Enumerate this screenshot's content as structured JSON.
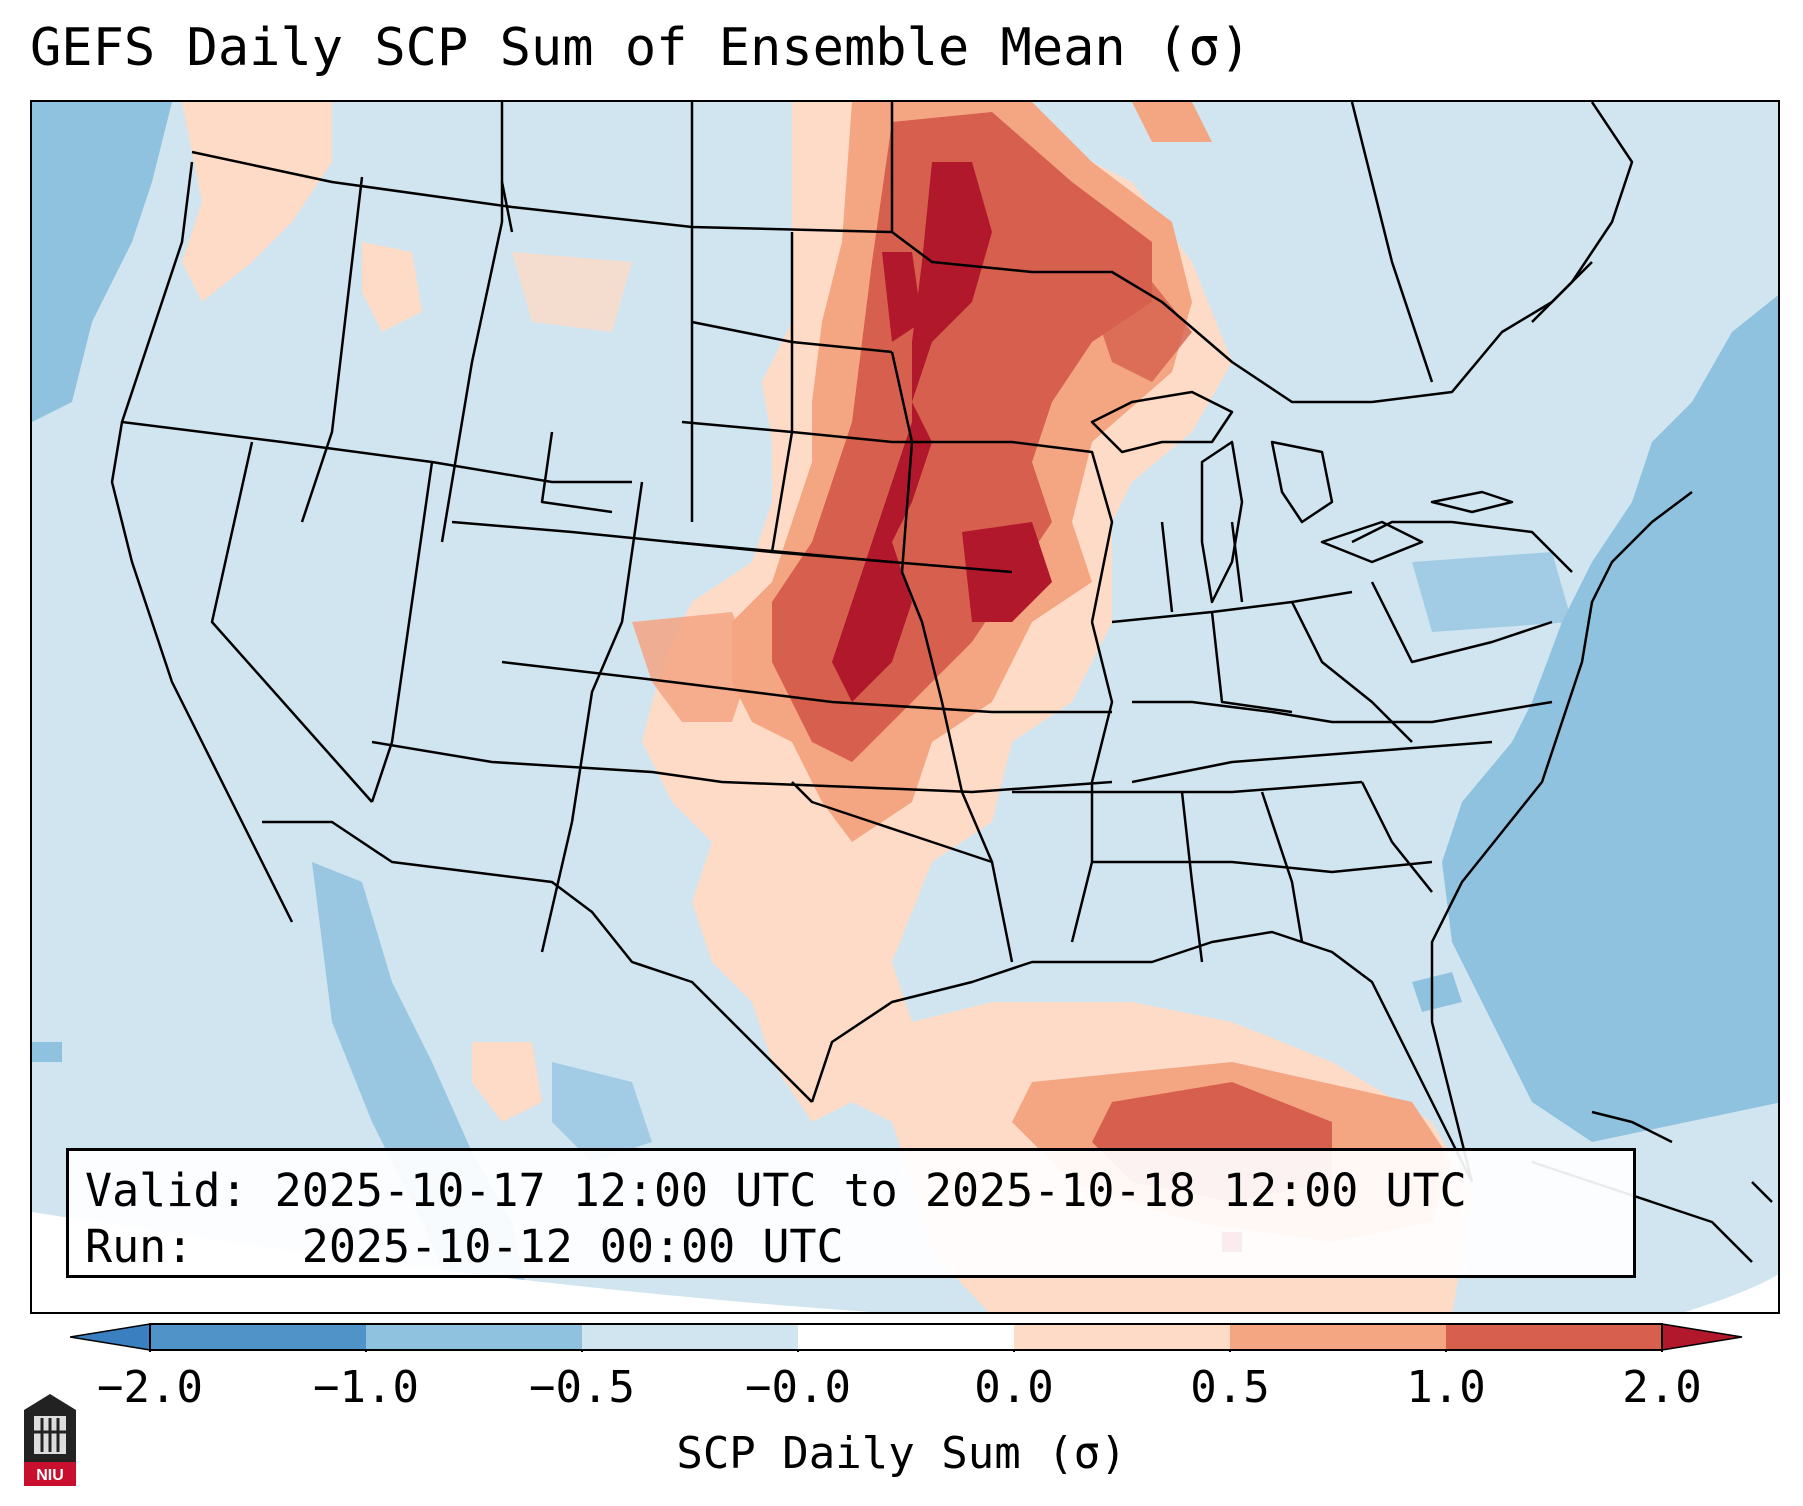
{
  "title": "GEFS Daily SCP Sum of Ensemble Mean (σ)",
  "info": {
    "valid_label": "Valid:",
    "valid_value": "2025-10-17 12:00 UTC to 2025-10-18 12:00 UTC",
    "run_label": "Run:",
    "run_value": "2025-10-12 00:00 UTC"
  },
  "colorbar": {
    "label": "SCP Daily Sum (σ)",
    "ticks": [
      "−2.0",
      "−1.0",
      "−0.5",
      "−0.0",
      "0.0",
      "0.5",
      "1.0",
      "2.0"
    ],
    "colors": {
      "under": "#3a7fbf",
      "c1": "#4f93c8",
      "c2": "#8fc2df",
      "c3": "#d1e5f0",
      "c4": "#fddbc7",
      "c5": "#f4a582",
      "c6": "#d6604d",
      "over": "#b2182b"
    }
  },
  "logo": {
    "text": "NIU"
  },
  "map": {
    "land_color": "#d1e5f0",
    "ocean_color": "#8fc2df",
    "border_color": "#000000"
  }
}
